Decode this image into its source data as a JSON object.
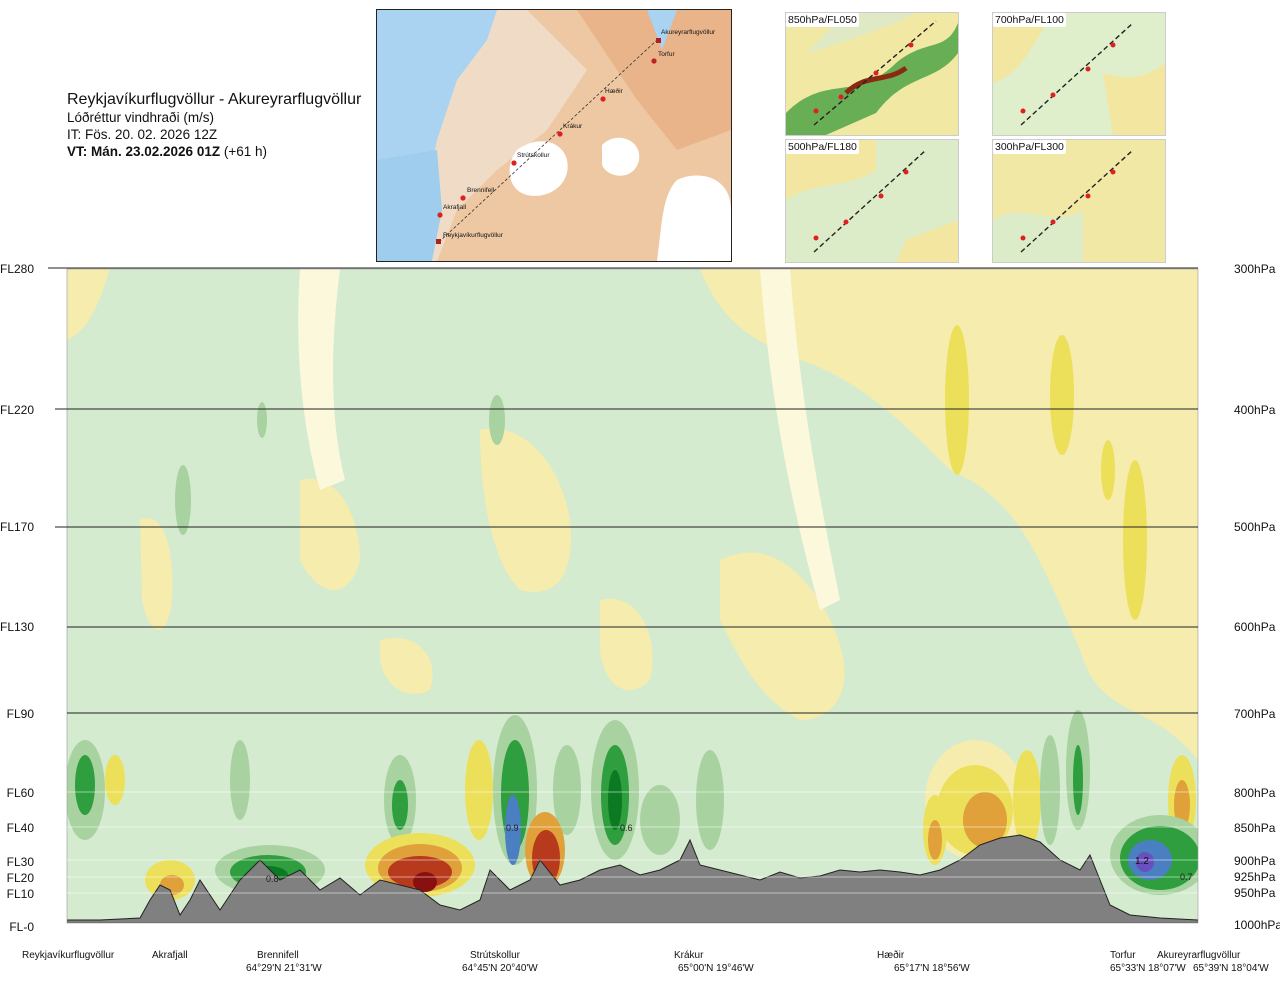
{
  "header": {
    "route": "Reykjavíkurflugvöllur - Akureyrarflugvöllur",
    "parameter": "Lóðréttur vindhraði (m/s)",
    "issue_time": "IT: Fös. 20. 02. 2026 12Z",
    "valid_time_bold": "VT: Mán. 23.02.2026 01Z",
    "valid_time_offset": "(+61 h)"
  },
  "flight_levels": [
    "FL280",
    "FL220",
    "FL170",
    "FL130",
    "FL90",
    "FL60",
    "FL40",
    "FL30",
    "FL20",
    "FL10",
    "FL-0"
  ],
  "pressure_levels": [
    "300hPa",
    "400hPa",
    "500hPa",
    "600hPa",
    "700hPa",
    "800hPa",
    "850hPa",
    "900hPa",
    "925hPa",
    "950hPa",
    "1000hPa"
  ],
  "waypoints": [
    {
      "name": "Reykjavíkurflugvöllur",
      "coord": ""
    },
    {
      "name": "Akrafjall",
      "coord": ""
    },
    {
      "name": "Brennifell",
      "coord": "64°29'N 21°31'W"
    },
    {
      "name": "Strútskollur",
      "coord": "64°45'N 20°40'W"
    },
    {
      "name": "Krákur",
      "coord": "65°00'N 19°46'W"
    },
    {
      "name": "Hæðir",
      "coord": "65°17'N 18°56'W"
    },
    {
      "name": "Torfur",
      "coord": "65°33'N 18°07'W"
    },
    {
      "name": "Akureyrarflugvöllur",
      "coord": "65°39'N 18°04'W"
    }
  ],
  "map_labels": [
    "Akureyrarflugvöllur",
    "Torfur",
    "Hæðir",
    "Krákur",
    "Strútskollur",
    "Brennifell",
    "Akrafjall",
    "Reykjavíkurflugvöllur"
  ],
  "thumbnails": [
    "850hPa/FL050",
    "700hPa/FL100",
    "500hPa/FL180",
    "300hPa/FL300"
  ],
  "contour_values": [
    "0.8",
    "0.9",
    "0.6",
    "1.2",
    "0.7"
  ],
  "colors": {
    "green_light": "#d3ebcf",
    "yellow_light": "#f5ecad",
    "yellow": "#ece05a",
    "orange": "#e0a03a",
    "red": "#b83a1c",
    "dark_red": "#8a1010",
    "green": "#2e9e3e",
    "dark_green": "#0c7a22",
    "blue": "#4a7fc1",
    "purple": "#6850c0",
    "terrain": "#808080"
  }
}
